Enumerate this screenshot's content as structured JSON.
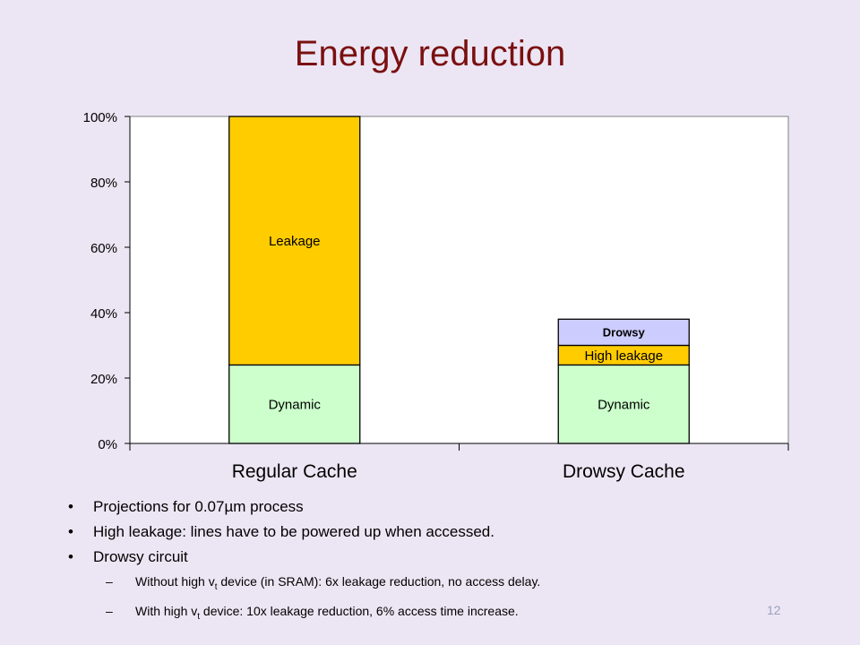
{
  "slide": {
    "title": "Energy reduction",
    "page_number": "12"
  },
  "bullets": [
    {
      "text": "Projections for 0.07µm process"
    },
    {
      "text": "High leakage: lines have to be powered up when accessed."
    },
    {
      "text": "Drowsy circuit",
      "subitems": [
        {
          "pre": "Without high v",
          "sub": "t",
          "post": " device (in SRAM): 6x leakage  reduction, no access delay."
        },
        {
          "pre": "With high v",
          "sub": "t",
          "post": " device: 10x leakage reduction, 6% access time increase."
        }
      ]
    }
  ],
  "chart_data": {
    "type": "bar",
    "stacked": true,
    "categories": [
      "Regular Cache",
      "Drowsy Cache"
    ],
    "ylim": [
      0,
      100
    ],
    "yticks": [
      "0%",
      "20%",
      "40%",
      "60%",
      "80%",
      "100%"
    ],
    "ytick_values": [
      0,
      20,
      40,
      60,
      80,
      100
    ],
    "xlabel": "",
    "ylabel": "",
    "title": "",
    "grid": false,
    "series": [
      {
        "name": "Dynamic",
        "color": "#ccffcc",
        "values": [
          24,
          24
        ]
      },
      {
        "name": "Leakage",
        "color": "#ffcc00",
        "values": [
          76,
          0
        ]
      },
      {
        "name": "High leakage",
        "color": "#ffcc00",
        "values": [
          0,
          6
        ]
      },
      {
        "name": "Drowsy",
        "color": "#ccccff",
        "values": [
          0,
          8
        ]
      }
    ]
  }
}
